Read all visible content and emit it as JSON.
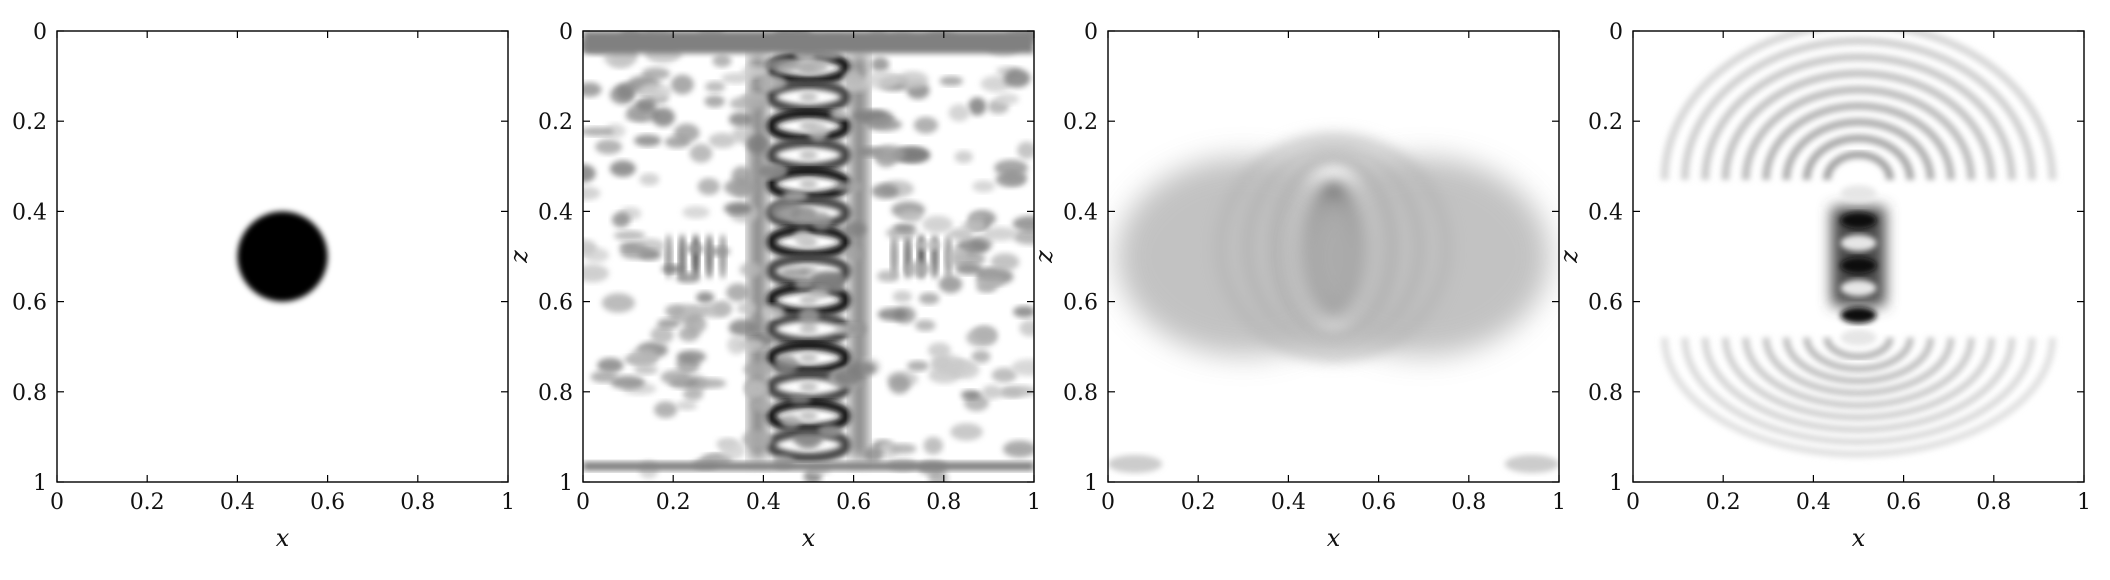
{
  "chart_data": [
    {
      "type": "heatmap",
      "title": "",
      "xlabel": "x",
      "ylabel": "",
      "xlim": [
        0,
        1
      ],
      "ylim": [
        1,
        0
      ],
      "x_ticks": [
        "0",
        "0.2",
        "0.4",
        "0.6",
        "0.8",
        "1"
      ],
      "y_ticks": [
        "0",
        "0.2",
        "0.4",
        "0.6",
        "0.8",
        "1"
      ],
      "colormap": "grayscale, white = 0, black = maximum",
      "grid": false,
      "pattern": "single disc",
      "features": [
        {
          "kind": "disc",
          "x": 0.5,
          "z": 0.5,
          "radius": 0.1,
          "value": 1.0
        }
      ]
    },
    {
      "type": "heatmap",
      "title": "",
      "xlabel": "x",
      "ylabel": "z",
      "xlim": [
        0,
        1
      ],
      "ylim": [
        1,
        0
      ],
      "x_ticks": [
        "0",
        "0.2",
        "0.4",
        "0.6",
        "0.8",
        "1"
      ],
      "y_ticks": [
        "0",
        "0.2",
        "0.4",
        "0.6",
        "0.8",
        "1"
      ],
      "colormap": "grayscale, white = 0, black = maximum",
      "grid": false,
      "pattern": "strong oscillatory artifacts filling the domain, vertical column of rings at x = 0.5",
      "features": [
        {
          "kind": "column-rings",
          "x": 0.5,
          "z_from": 0.05,
          "z_to": 0.95,
          "value": 0.9
        },
        {
          "kind": "side-streaks",
          "x": 0.25,
          "z": 0.5,
          "value": 0.7
        },
        {
          "kind": "side-streaks",
          "x": 0.75,
          "z": 0.5,
          "value": 0.7
        },
        {
          "kind": "background-speckle",
          "value": 0.45
        }
      ]
    },
    {
      "type": "heatmap",
      "title": "",
      "xlabel": "x",
      "ylabel": "z",
      "xlim": [
        0,
        1
      ],
      "ylim": [
        1,
        0
      ],
      "x_ticks": [
        "0",
        "0.2",
        "0.4",
        "0.6",
        "0.8",
        "1"
      ],
      "y_ticks": [
        "0",
        "0.2",
        "0.4",
        "0.6",
        "0.8",
        "1"
      ],
      "colormap": "grayscale, white = 0, black = maximum",
      "grid": false,
      "pattern": "smooth elongated blob at center with side haze",
      "features": [
        {
          "kind": "ellipse",
          "x": 0.5,
          "z": 0.48,
          "rx": 0.06,
          "rz": 0.14,
          "value": 1.0
        },
        {
          "kind": "halo-rings",
          "x": 0.5,
          "z": 0.48,
          "value": 0.35
        },
        {
          "kind": "side-haze",
          "z": 0.5,
          "value": 0.3
        }
      ]
    },
    {
      "type": "heatmap",
      "title": "",
      "xlabel": "x",
      "ylabel": "z",
      "xlim": [
        0,
        1
      ],
      "ylim": [
        1,
        0
      ],
      "x_ticks": [
        "0",
        "0.2",
        "0.4",
        "0.6",
        "0.8",
        "1"
      ],
      "y_ticks": [
        "0",
        "0.2",
        "0.4",
        "0.6",
        "0.8",
        "1"
      ],
      "colormap": "grayscale, white = 0, black = maximum",
      "grid": false,
      "pattern": "concentrated dark core near x = 0.5, z = 0.5 with arc ripples above and below",
      "features": [
        {
          "kind": "core",
          "x": 0.5,
          "z": 0.5,
          "value": 0.95
        },
        {
          "kind": "arc-ripples",
          "x": 0.5,
          "z_from": 0.0,
          "z_to": 1.0,
          "value": 0.35
        }
      ]
    }
  ]
}
